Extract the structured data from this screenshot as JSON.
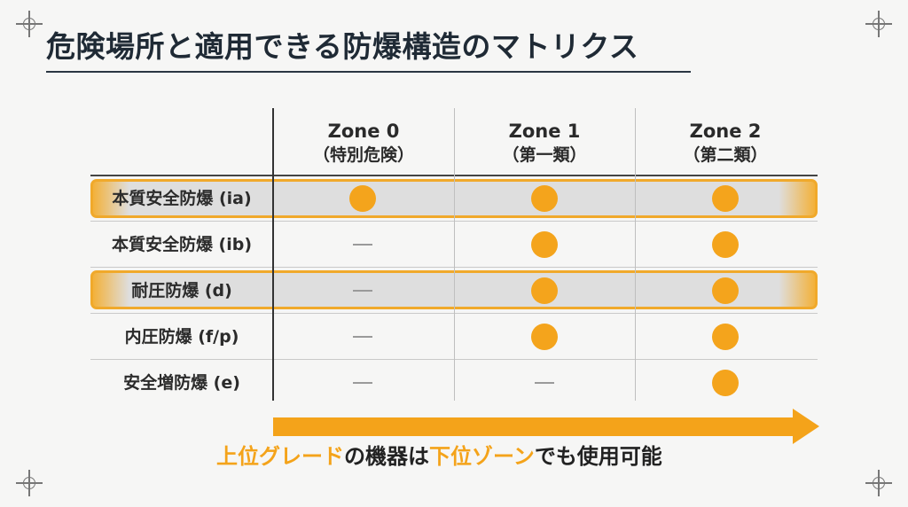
{
  "title": "危険場所と適用できる防爆構造のマトリクス",
  "columns": [
    {
      "zone": "Zone 0",
      "class": "（特別危険）"
    },
    {
      "zone": "Zone 1",
      "class": "（第一類）"
    },
    {
      "zone": "Zone 2",
      "class": "（第二類）"
    }
  ],
  "rows": [
    {
      "label": "本質安全防爆 (ia)",
      "highlighted": true,
      "cells": [
        "dot",
        "dot",
        "dot"
      ]
    },
    {
      "label": "本質安全防爆 (ib)",
      "highlighted": false,
      "cells": [
        "dash",
        "dot",
        "dot"
      ]
    },
    {
      "label": "耐圧防爆 (d)",
      "highlighted": true,
      "cells": [
        "dash",
        "dot",
        "dot"
      ]
    },
    {
      "label": "内圧防爆 (f/p)",
      "highlighted": false,
      "cells": [
        "dash",
        "dot",
        "dot"
      ]
    },
    {
      "label": "安全増防爆 (e)",
      "highlighted": false,
      "cells": [
        "dash",
        "dash",
        "dot"
      ]
    }
  ],
  "caption": {
    "part1": "上位グレード",
    "part2": "の機器は",
    "part3": "下位ゾーン",
    "part4": "でも使用可能"
  },
  "colors": {
    "accent": "#f4a41c",
    "highlight_fill": "#dedede",
    "dash": "#9a9a9a"
  },
  "icons": [
    "applicable-dot",
    "not-applicable-dash",
    "direction-arrow",
    "crosshair-mark"
  ]
}
